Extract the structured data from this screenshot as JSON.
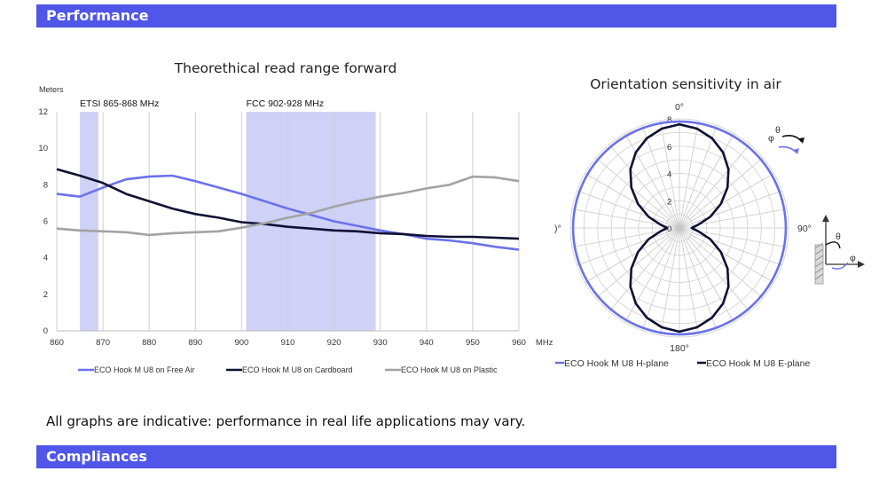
{
  "sections": {
    "performance": "Performance",
    "compliances": "Compliances"
  },
  "note": "All graphs are indicative: performance in real life applications may vary.",
  "chart_data": [
    {
      "type": "line",
      "title": "Theorethical read range forward",
      "ylabel": "Meters",
      "xunit": "MHz",
      "xlim": [
        860,
        960
      ],
      "ylim": [
        0,
        12
      ],
      "xticks": [
        "860",
        "870",
        "880",
        "890",
        "900",
        "910",
        "920",
        "930",
        "940",
        "950",
        "960"
      ],
      "yticks": [
        "0",
        "2",
        "4",
        "6",
        "8",
        "10",
        "12"
      ],
      "grid": "vertical",
      "bands": [
        {
          "label": "ETSI 865-868 MHz",
          "from": 865,
          "to": 869
        },
        {
          "label": "FCC 902-928 MHz",
          "from": 901,
          "to": 929
        }
      ],
      "legend_position": "bottom",
      "series": [
        {
          "name": "ECO Hook M U8 on Free Air",
          "color": "#6b72ea",
          "x": [
            860,
            865,
            870,
            875,
            880,
            885,
            890,
            895,
            900,
            905,
            910,
            915,
            920,
            925,
            930,
            935,
            940,
            945,
            950,
            955,
            960
          ],
          "y": [
            7.5,
            7.35,
            7.85,
            8.3,
            8.45,
            8.5,
            8.2,
            7.85,
            7.5,
            7.1,
            6.7,
            6.35,
            6.0,
            5.75,
            5.5,
            5.3,
            5.05,
            4.95,
            4.8,
            4.6,
            4.45
          ]
        },
        {
          "name": "ECO Hook M U8 on Cardboard",
          "color": "#0f1133",
          "x": [
            860,
            865,
            870,
            875,
            880,
            885,
            890,
            895,
            900,
            905,
            910,
            915,
            920,
            925,
            930,
            935,
            940,
            945,
            950,
            955,
            960
          ],
          "y": [
            8.85,
            8.5,
            8.1,
            7.5,
            7.1,
            6.7,
            6.4,
            6.2,
            5.95,
            5.85,
            5.7,
            5.6,
            5.5,
            5.45,
            5.35,
            5.3,
            5.2,
            5.15,
            5.15,
            5.1,
            5.05
          ]
        },
        {
          "name": "ECO Hook M U8 on Plastic",
          "color": "#a3a3a3",
          "x": [
            860,
            865,
            870,
            875,
            880,
            885,
            890,
            895,
            900,
            905,
            910,
            915,
            920,
            925,
            930,
            935,
            940,
            945,
            950,
            955,
            960
          ],
          "y": [
            5.6,
            5.5,
            5.45,
            5.4,
            5.25,
            5.35,
            5.4,
            5.45,
            5.65,
            5.9,
            6.2,
            6.45,
            6.8,
            7.1,
            7.35,
            7.55,
            7.8,
            8.0,
            8.45,
            8.4,
            8.2
          ]
        }
      ]
    },
    {
      "type": "polar",
      "title": "Orientation sensitivity in air",
      "rlim": [
        0,
        8
      ],
      "rticks": [
        "0",
        "2",
        "4",
        "6",
        "8"
      ],
      "angle_labels": {
        "top": "0°",
        "right": "90°",
        "bottom": "180°",
        "left": ")°"
      },
      "inset_labels": {
        "theta": "θ",
        "phi": "φ"
      },
      "series": [
        {
          "name": "ECO Hook M U8 H-plane",
          "color": "#6b72ea",
          "angles_deg": [
            0,
            45,
            90,
            135,
            180,
            225,
            270,
            315
          ],
          "r": [
            7.8,
            7.8,
            7.8,
            7.8,
            7.8,
            7.8,
            7.8,
            7.8
          ]
        },
        {
          "name": "ECO Hook M U8 E-plane",
          "color": "#0f1133",
          "angles_deg": [
            0,
            10,
            20,
            30,
            40,
            50,
            60,
            70,
            80,
            90,
            100,
            110,
            120,
            130,
            140,
            150,
            160,
            170,
            180,
            190,
            200,
            210,
            220,
            230,
            240,
            250,
            260,
            270,
            280,
            290,
            300,
            310,
            320,
            330,
            340,
            350
          ],
          "r": [
            7.6,
            7.4,
            7.0,
            6.4,
            5.6,
            4.6,
            3.5,
            2.4,
            1.4,
            0.9,
            1.4,
            2.4,
            3.5,
            4.6,
            5.6,
            6.4,
            7.0,
            7.4,
            7.6,
            7.4,
            7.0,
            6.4,
            5.6,
            4.6,
            3.5,
            2.4,
            1.4,
            0.9,
            1.4,
            2.4,
            3.5,
            4.6,
            5.6,
            6.4,
            7.0,
            7.4
          ]
        }
      ]
    }
  ]
}
